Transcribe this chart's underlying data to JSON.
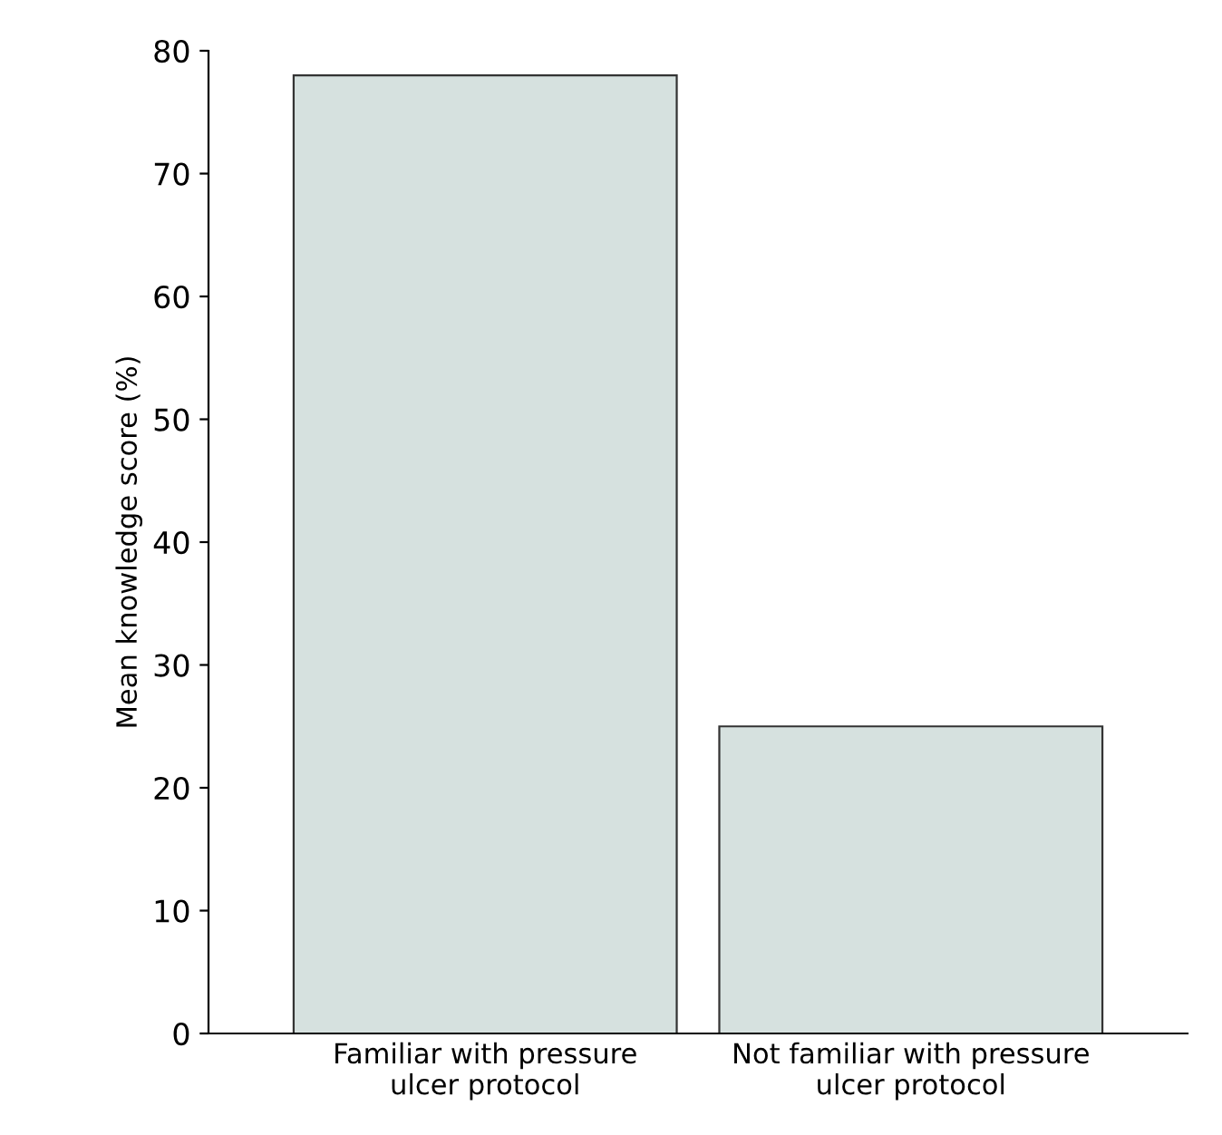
{
  "chart_data": {
    "type": "bar",
    "ylabel": "Mean knowledge score (%)",
    "categories": [
      "Familiar with pressure\nulcer protocol",
      "Not familiar with pressure\nulcer protocol"
    ],
    "values": [
      78,
      25
    ],
    "color": "#d6e1df",
    "ylim": [
      0,
      80
    ],
    "yticks": [
      0,
      10,
      20,
      30,
      40,
      50,
      60,
      70,
      80
    ],
    "grid": false
  }
}
